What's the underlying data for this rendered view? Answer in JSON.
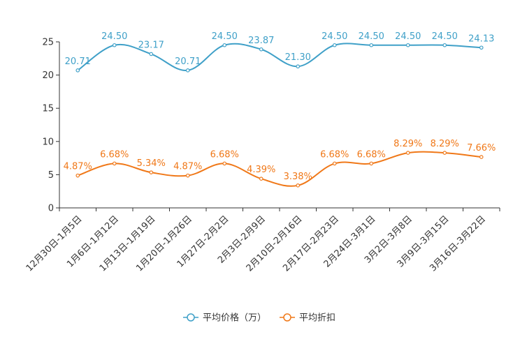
{
  "chart_data": {
    "type": "line",
    "title": "",
    "xlabel": "",
    "ylabel": "",
    "ylim": [
      0,
      25
    ],
    "yticks": [
      0,
      5,
      10,
      15,
      20,
      25
    ],
    "grid": false,
    "legend_position": "bottom-center",
    "categories": [
      "12月30日-1月5日",
      "1月6日-1月12日",
      "1月13日-1月19日",
      "1月20日-1月26日",
      "1月27日-2月2日",
      "2月3日-2月9日",
      "2月10日-2月16日",
      "2月17日-2月23日",
      "2月24日-3月1日",
      "3月2日-3月8日",
      "3月9日-3月15日",
      "3月16日-3月22日"
    ],
    "series": [
      {
        "name": "平均价格（万）",
        "color": "#3fa0c8",
        "values": [
          20.71,
          24.5,
          23.17,
          20.71,
          24.5,
          23.87,
          21.3,
          24.5,
          24.5,
          24.5,
          24.5,
          24.13
        ],
        "labels": [
          "20.71",
          "24.50",
          "23.17",
          "20.71",
          "24.50",
          "23.87",
          "21.30",
          "24.50",
          "24.50",
          "24.50",
          "24.50",
          "24.13"
        ]
      },
      {
        "name": "平均折扣",
        "color": "#f07818",
        "values": [
          4.87,
          6.68,
          5.34,
          4.87,
          6.68,
          4.39,
          3.38,
          6.68,
          6.68,
          8.29,
          8.29,
          7.66
        ],
        "labels": [
          "4.87%",
          "6.68%",
          "5.34%",
          "4.87%",
          "6.68%",
          "4.39%",
          "3.38%",
          "6.68%",
          "6.68%",
          "8.29%",
          "8.29%",
          "7.66%"
        ]
      }
    ]
  }
}
